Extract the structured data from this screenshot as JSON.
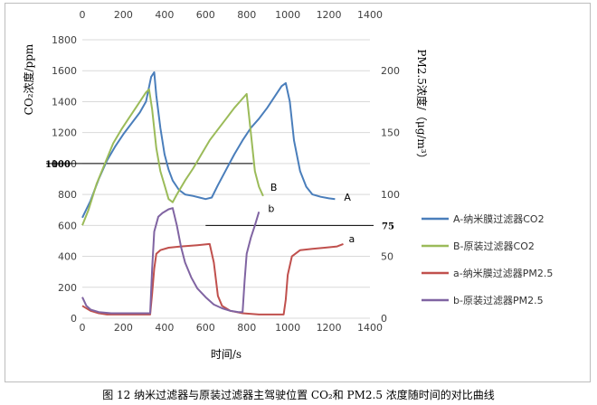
{
  "caption": "图 12 纳米过滤器与原装过滤器主驾驶位置 CO₂和 PM2.5 浓度随时间的对比曲线",
  "chart_data": {
    "type": "line",
    "xlabel": "时间/s",
    "ylabel_left": "CO₂浓度/ppm",
    "ylabel_right": "PM2.5浓度/（μg/m³）",
    "x_range": [
      0,
      1400
    ],
    "x_ticks": [
      "0",
      "200",
      "400",
      "600",
      "800",
      "1000",
      "1200",
      "1400"
    ],
    "y_left_range": [
      0,
      1800
    ],
    "y_left_ticks": [
      "0",
      "200",
      "400",
      "600",
      "800",
      "1000",
      "1200",
      "1400",
      "1600",
      "1800"
    ],
    "y_right_range": [
      0,
      225
    ],
    "y_right_ticks": [
      "0",
      "50",
      "100",
      "150",
      "200"
    ],
    "grid": "horizontal",
    "legend_position": "right",
    "series": [
      {
        "name": "A-纳米膜过滤器CO2",
        "axis": "left",
        "color": "#4a7ebb",
        "label": "A",
        "points": [
          [
            0,
            650
          ],
          [
            40,
            760
          ],
          [
            80,
            900
          ],
          [
            120,
            1020
          ],
          [
            160,
            1110
          ],
          [
            200,
            1190
          ],
          [
            240,
            1260
          ],
          [
            280,
            1330
          ],
          [
            310,
            1400
          ],
          [
            335,
            1560
          ],
          [
            350,
            1590
          ],
          [
            360,
            1440
          ],
          [
            380,
            1230
          ],
          [
            400,
            1060
          ],
          [
            420,
            960
          ],
          [
            440,
            890
          ],
          [
            470,
            830
          ],
          [
            500,
            800
          ],
          [
            540,
            790
          ],
          [
            570,
            780
          ],
          [
            600,
            770
          ],
          [
            630,
            780
          ],
          [
            660,
            860
          ],
          [
            700,
            960
          ],
          [
            740,
            1060
          ],
          [
            780,
            1150
          ],
          [
            820,
            1230
          ],
          [
            860,
            1290
          ],
          [
            900,
            1360
          ],
          [
            940,
            1440
          ],
          [
            970,
            1500
          ],
          [
            990,
            1520
          ],
          [
            1010,
            1400
          ],
          [
            1030,
            1150
          ],
          [
            1060,
            950
          ],
          [
            1090,
            850
          ],
          [
            1120,
            800
          ],
          [
            1160,
            785
          ],
          [
            1200,
            775
          ],
          [
            1230,
            770
          ]
        ]
      },
      {
        "name": "B-原装过滤器CO2",
        "axis": "left",
        "color": "#9bbb59",
        "label": "B",
        "points": [
          [
            0,
            600
          ],
          [
            30,
            700
          ],
          [
            70,
            870
          ],
          [
            110,
            1000
          ],
          [
            150,
            1130
          ],
          [
            190,
            1220
          ],
          [
            230,
            1300
          ],
          [
            270,
            1380
          ],
          [
            310,
            1460
          ],
          [
            325,
            1480
          ],
          [
            340,
            1350
          ],
          [
            360,
            1100
          ],
          [
            380,
            950
          ],
          [
            400,
            860
          ],
          [
            420,
            770
          ],
          [
            440,
            750
          ],
          [
            460,
            800
          ],
          [
            500,
            890
          ],
          [
            540,
            970
          ],
          [
            580,
            1060
          ],
          [
            620,
            1150
          ],
          [
            660,
            1220
          ],
          [
            700,
            1290
          ],
          [
            740,
            1360
          ],
          [
            780,
            1420
          ],
          [
            800,
            1450
          ],
          [
            820,
            1200
          ],
          [
            840,
            950
          ],
          [
            860,
            850
          ],
          [
            880,
            790
          ]
        ]
      },
      {
        "name": "a-纳米膜过滤器PM2.5",
        "axis": "right",
        "color": "#c0504d",
        "label": "a",
        "points": [
          [
            0,
            10
          ],
          [
            40,
            6
          ],
          [
            80,
            4
          ],
          [
            120,
            3
          ],
          [
            200,
            3
          ],
          [
            280,
            3
          ],
          [
            330,
            3
          ],
          [
            340,
            20
          ],
          [
            350,
            40
          ],
          [
            360,
            52
          ],
          [
            380,
            55
          ],
          [
            420,
            57
          ],
          [
            480,
            58
          ],
          [
            560,
            59
          ],
          [
            620,
            60
          ],
          [
            640,
            45
          ],
          [
            660,
            18
          ],
          [
            680,
            10
          ],
          [
            720,
            6
          ],
          [
            780,
            4
          ],
          [
            860,
            3
          ],
          [
            920,
            3
          ],
          [
            980,
            3
          ],
          [
            990,
            15
          ],
          [
            1000,
            35
          ],
          [
            1020,
            50
          ],
          [
            1060,
            55
          ],
          [
            1120,
            56
          ],
          [
            1180,
            57
          ],
          [
            1240,
            58
          ],
          [
            1270,
            60
          ]
        ]
      },
      {
        "name": "b-原装过滤器PM2.5",
        "axis": "right",
        "color": "#8064a2",
        "label": "b",
        "points": [
          [
            0,
            17
          ],
          [
            20,
            10
          ],
          [
            40,
            7
          ],
          [
            80,
            5
          ],
          [
            140,
            4
          ],
          [
            200,
            4
          ],
          [
            280,
            4
          ],
          [
            330,
            4
          ],
          [
            340,
            40
          ],
          [
            350,
            70
          ],
          [
            370,
            82
          ],
          [
            390,
            85
          ],
          [
            420,
            88
          ],
          [
            440,
            89
          ],
          [
            460,
            75
          ],
          [
            480,
            58
          ],
          [
            500,
            45
          ],
          [
            530,
            33
          ],
          [
            560,
            24
          ],
          [
            600,
            17
          ],
          [
            640,
            11
          ],
          [
            680,
            8
          ],
          [
            720,
            6
          ],
          [
            760,
            5
          ],
          [
            780,
            5
          ],
          [
            790,
            30
          ],
          [
            800,
            52
          ],
          [
            820,
            65
          ],
          [
            840,
            75
          ],
          [
            860,
            86
          ]
        ]
      }
    ],
    "annotations": [
      {
        "text": "1000",
        "axis": "left",
        "y": 1000,
        "x_range": [
          0,
          830
        ]
      },
      {
        "text": "75",
        "axis": "right",
        "y": 75,
        "x_range": [
          600,
          1400
        ]
      }
    ]
  }
}
